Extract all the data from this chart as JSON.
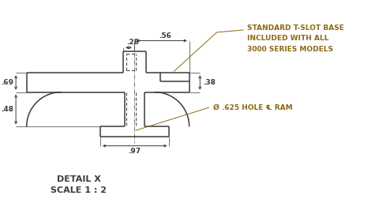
{
  "bg_color": "#ffffff",
  "line_color": "#3a3a3a",
  "text_color": "#3a3a3a",
  "annotation_color": "#8B6914",
  "title_text": "DETAIL X\nSCALE 1 : 2",
  "label_tslot": "STANDARD T-SLOT BASE\nINCLUDED WITH ALL\n3000 SERIES MODELS",
  "label_hole": "Ø .625 HOLE ℄ RAM",
  "dim_056": ".56",
  "dim_028": ".28",
  "dim_069": ".69",
  "dim_038": ".38",
  "dim_048": ".48",
  "dim_097": ".97"
}
